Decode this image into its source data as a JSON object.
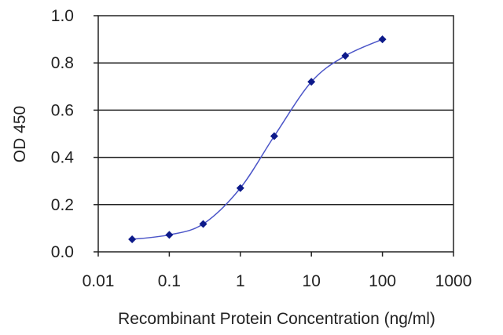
{
  "chart_data": {
    "type": "line",
    "title": "",
    "xlabel": "Recombinant Protein Concentration (ng/ml)",
    "ylabel": "OD 450",
    "x_scale": "log",
    "xlim": [
      0.01,
      1000
    ],
    "ylim": [
      0.0,
      1.0
    ],
    "x_ticks": [
      "0.01",
      "0.1",
      "1",
      "10",
      "100",
      "1000"
    ],
    "y_ticks": [
      "0.0",
      "0.2",
      "0.4",
      "0.6",
      "0.8",
      "1.0"
    ],
    "grid": "horizontal",
    "legend": "none",
    "series": [
      {
        "x": [
          0.03,
          0.1,
          0.3,
          1,
          3,
          10,
          30,
          100
        ],
        "y": [
          0.053,
          0.072,
          0.118,
          0.27,
          0.49,
          0.72,
          0.83,
          0.9
        ]
      }
    ],
    "colors": {
      "line": "#4b55c8",
      "marker": "#0d1a8a",
      "grid": "#222222",
      "frame": "#222222"
    }
  }
}
